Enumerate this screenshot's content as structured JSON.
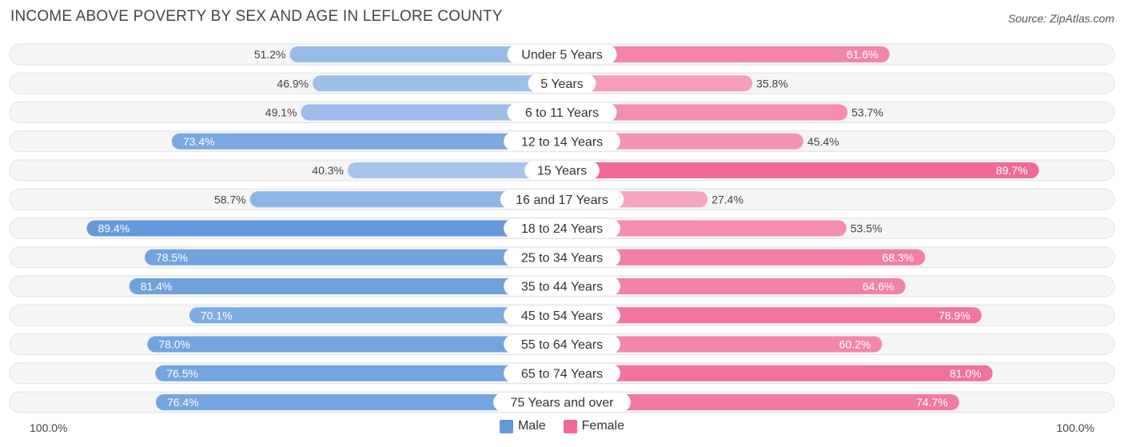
{
  "header": {
    "title": "INCOME ABOVE POVERTY BY SEX AND AGE IN LEFLORE COUNTY",
    "source": "Source: ZipAtlas.com"
  },
  "axis": {
    "left_label": "100.0%",
    "right_label": "100.0%"
  },
  "legend": {
    "male_label": "Male",
    "female_label": "Female"
  },
  "colors": {
    "male_light": "#a7c5ea",
    "male_dark": "#6399dc",
    "female_light": "#f7a8c1",
    "female_dark": "#f06a95",
    "track": "#efefef"
  },
  "chart_data": {
    "type": "bar",
    "orientation": "horizontal-diverging",
    "title": "INCOME ABOVE POVERTY BY SEX AND AGE IN LEFLORE COUNTY",
    "xlim": [
      -100,
      100
    ],
    "categories": [
      "Under 5 Years",
      "5 Years",
      "6 to 11 Years",
      "12 to 14 Years",
      "15 Years",
      "16 and 17 Years",
      "18 to 24 Years",
      "25 to 34 Years",
      "35 to 44 Years",
      "45 to 54 Years",
      "55 to 64 Years",
      "65 to 74 Years",
      "75 Years and over"
    ],
    "series": [
      {
        "name": "Male",
        "values": [
          51.2,
          46.9,
          49.1,
          73.4,
          40.3,
          58.7,
          89.4,
          78.5,
          81.4,
          70.1,
          78.0,
          76.5,
          76.4
        ],
        "labels": [
          "51.2%",
          "46.9%",
          "49.1%",
          "73.4%",
          "40.3%",
          "58.7%",
          "89.4%",
          "78.5%",
          "81.4%",
          "70.1%",
          "78.0%",
          "76.5%",
          "76.4%"
        ]
      },
      {
        "name": "Female",
        "values": [
          61.6,
          35.8,
          53.7,
          45.4,
          89.7,
          27.4,
          53.5,
          68.3,
          64.6,
          78.9,
          60.2,
          81.0,
          74.7
        ],
        "labels": [
          "61.6%",
          "35.8%",
          "53.7%",
          "45.4%",
          "89.7%",
          "27.4%",
          "53.5%",
          "68.3%",
          "64.6%",
          "78.9%",
          "60.2%",
          "81.0%",
          "74.7%"
        ]
      }
    ]
  }
}
